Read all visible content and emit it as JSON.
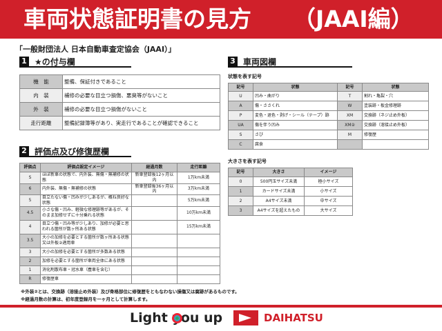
{
  "header": {
    "title": "車両状態証明書の見方",
    "title_suffix": "（JAAI編）"
  },
  "subtitle": "「一般財団法人 日本自動車査定協会（JAAI）」",
  "section1": {
    "num": "1",
    "title": "★の付与欄",
    "rows": [
      [
        "機　能",
        "整備、保証付きであること"
      ],
      [
        "内　装",
        "補修の必要な目立つ損傷、悪臭等がないこと"
      ],
      [
        "外　装",
        "補修の必要な目立つ損傷がないこと"
      ],
      [
        "走行距離",
        "整備記録簿等があり、実走行であることが確認できること"
      ]
    ]
  },
  "section2": {
    "num": "2",
    "title": "評価点及び修復歴欄",
    "headers": [
      "評価点",
      "評価点設定イメージ",
      "経過月数",
      "走行距離"
    ],
    "rows": [
      [
        "S",
        "ほぼ新車の状態で、内外装、無傷・無補修の状態",
        "新車登録後12ヶ月以内",
        "1万km未満"
      ],
      [
        "6",
        "内外装、無傷・無補修の状態",
        "新車登録後36ヶ月以内",
        "3万km未満"
      ],
      [
        "5",
        "目立たない傷・凹みが少しあるが、概ね良好な状態",
        "",
        "5万km未満"
      ],
      [
        "4.5",
        "小さな傷・凹み、軽微な修理跡等があるが、そのまま加修せずに十分乗れる状態",
        "",
        "10万km未満"
      ],
      [
        "4",
        "目立つ傷・凹み等が少しあり、加修が必要と思われる箇所が数ヶ所ある状態",
        "",
        "15万km未満"
      ],
      [
        "3.5",
        "大小の加修を必要とする箇所が数ヶ所ある状態又は外板②適用車",
        "",
        ""
      ],
      [
        "3",
        "大小の加修を必要とする箇所が多数ある状態",
        "",
        ""
      ],
      [
        "2",
        "加修を必要とする箇所が車両全体にある状態",
        "",
        ""
      ],
      [
        "1",
        "消化剤散布車・冠水車（塵車を含む）",
        "",
        ""
      ],
      [
        "R",
        "修復歴車",
        "",
        ""
      ]
    ]
  },
  "notes": [
    "※外装②とは、交換跡（溶接止め外装）及び骨格部位に修復歴をともなわない損傷又は腐跡があるものです。",
    "※経過月数の計算は、初年度登録月を一ヶ月として計算します。"
  ],
  "section3": {
    "num": "3",
    "title": "車両図欄",
    "state_caption": "状態を表す記号",
    "state_headers": [
      "記号",
      "状態",
      "記号",
      "状態"
    ],
    "state_rows": [
      [
        "U",
        "凹み・曲がり",
        "T",
        "割れ・亀裂・穴"
      ],
      [
        "A",
        "傷・ささくれ",
        "W",
        "塗装跡・板金修理跡"
      ],
      [
        "P",
        "変色・退色・剥げ・シール（テープ）跡",
        "XM",
        "交換跡（ネジ止め外板）"
      ],
      [
        "UA",
        "傷を伴う凹み",
        "XM②",
        "交換跡（溶接止め外板）"
      ],
      [
        "S",
        "さび",
        "M",
        "修復歴"
      ],
      [
        "C",
        "腐食",
        "",
        ""
      ]
    ],
    "size_caption": "大きさを表す記号",
    "size_headers": [
      "記号",
      "大きさ",
      "イメージ"
    ],
    "size_rows": [
      [
        "0",
        "500円玉サイズ未満",
        "極小サイズ"
      ],
      [
        "1",
        "カードサイズ未満",
        "小サイズ"
      ],
      [
        "2",
        "A4サイズ未満",
        "中サイズ"
      ],
      [
        "3",
        "A4サイズを超えたもの",
        "大サイズ"
      ]
    ]
  },
  "footer": {
    "slogan": "Light you up",
    "slogan_pre": "Light y",
    "slogan_post": "u up",
    "brand": "DAIHATSU"
  },
  "colors": {
    "brand_red": "#d0202a"
  }
}
